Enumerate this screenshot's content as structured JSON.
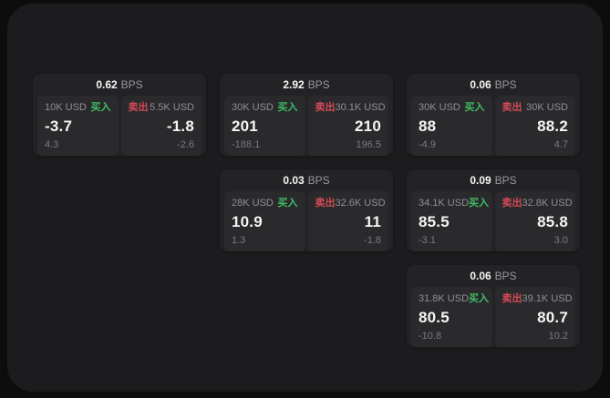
{
  "labels": {
    "bps": "BPS",
    "buy": "买入",
    "sell": "卖出"
  },
  "colors": {
    "page_bg": "#0d0d0e",
    "panel_bg": "#1c1c1e",
    "card_bg": "#232325",
    "inner_bg": "#2a2a2c",
    "buy": "#3ebd64",
    "sell": "#d44a57",
    "value_text": "#f5f5f6",
    "amount_text": "#909095",
    "delta_text": "#7a7a80",
    "bps_label_text": "#98989d"
  },
  "cards": [
    {
      "col": 1,
      "row": 1,
      "bps": "0.62",
      "buy": {
        "amount": "10K USD",
        "price": "-3.7",
        "delta": "4.3"
      },
      "sell": {
        "amount": "5.5K USD",
        "price": "-1.8",
        "delta": "-2.6"
      }
    },
    {
      "col": 2,
      "row": 1,
      "bps": "2.92",
      "buy": {
        "amount": "30K USD",
        "price": "201",
        "delta": "-188.1"
      },
      "sell": {
        "amount": "30.1K USD",
        "price": "210",
        "delta": "196.5"
      }
    },
    {
      "col": 3,
      "row": 1,
      "bps": "0.06",
      "buy": {
        "amount": "30K USD",
        "price": "88",
        "delta": "-4.9"
      },
      "sell": {
        "amount": "30K USD",
        "price": "88.2",
        "delta": "4.7"
      }
    },
    {
      "col": 2,
      "row": 2,
      "bps": "0.03",
      "buy": {
        "amount": "28K USD",
        "price": "10.9",
        "delta": "1.3"
      },
      "sell": {
        "amount": "32.6K USD",
        "price": "11",
        "delta": "-1.8"
      }
    },
    {
      "col": 3,
      "row": 2,
      "bps": "0.09",
      "buy": {
        "amount": "34.1K USD",
        "price": "85.5",
        "delta": "-3.1"
      },
      "sell": {
        "amount": "32.8K USD",
        "price": "85.8",
        "delta": "3.0"
      }
    },
    {
      "col": 3,
      "row": 3,
      "bps": "0.06",
      "buy": {
        "amount": "31.8K USD",
        "price": "80.5",
        "delta": "-10.8"
      },
      "sell": {
        "amount": "39.1K USD",
        "price": "80.7",
        "delta": "10.2"
      }
    }
  ]
}
